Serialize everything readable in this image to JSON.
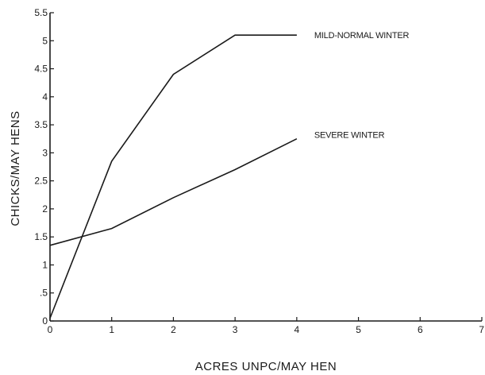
{
  "chart_data": {
    "type": "line",
    "title": "",
    "xlabel": "ACRES UNPC/MAY HEN",
    "ylabel": "CHICKS/MAY HENS",
    "xlim": [
      0,
      7
    ],
    "ylim": [
      0,
      5.5
    ],
    "xticks": [
      0,
      1,
      2,
      3,
      4,
      5,
      6,
      7
    ],
    "yticks": [
      0,
      0.5,
      1,
      1.5,
      2,
      2.5,
      3,
      3.5,
      4,
      4.5,
      5,
      5.5
    ],
    "xtick_labels": [
      "0",
      "1",
      "2",
      "3",
      "4",
      "5",
      "6",
      "7"
    ],
    "ytick_labels": [
      "0",
      ".5",
      "1",
      "1.5",
      "2",
      "2.5",
      "3",
      "3.5",
      "4",
      "4.5",
      "5",
      "5.5"
    ],
    "grid": false,
    "series": [
      {
        "name": "MILD-NORMAL WINTER",
        "x": [
          0,
          1,
          2,
          3,
          4
        ],
        "y": [
          0.05,
          2.85,
          4.4,
          5.1,
          5.1
        ]
      },
      {
        "name": "SEVERE WINTER",
        "x": [
          0,
          1,
          2,
          3,
          4
        ],
        "y": [
          1.35,
          1.65,
          2.2,
          2.7,
          3.25
        ]
      }
    ]
  }
}
